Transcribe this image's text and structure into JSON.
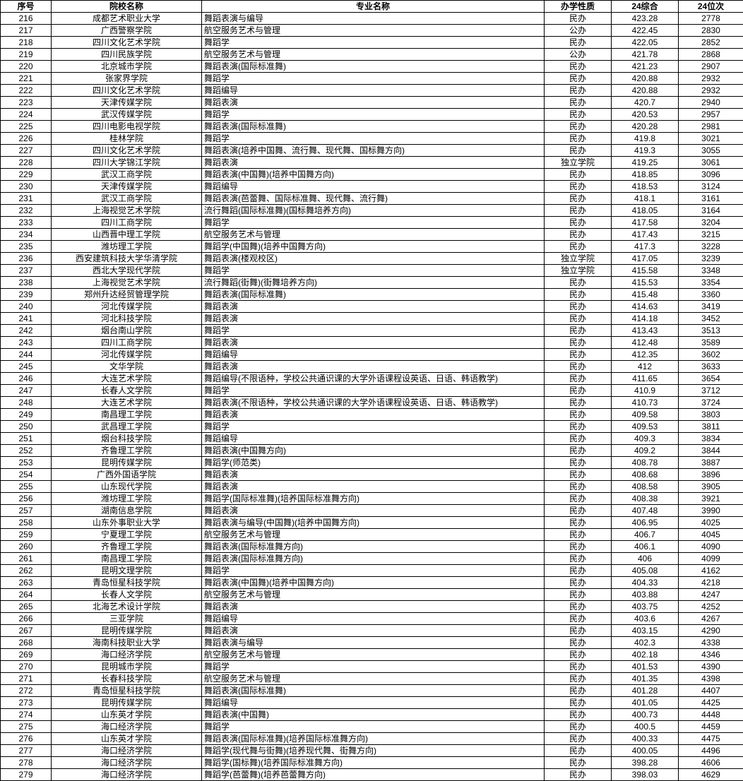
{
  "colors": {
    "border": "#000000",
    "text": "#000000",
    "background": "#ffffff"
  },
  "table": {
    "columns": [
      {
        "key": "seq",
        "label": "序号"
      },
      {
        "key": "school",
        "label": "院校名称"
      },
      {
        "key": "major",
        "label": "专业名称"
      },
      {
        "key": "type",
        "label": "办学性质"
      },
      {
        "key": "score",
        "label": "24综合"
      },
      {
        "key": "rank",
        "label": "24位次"
      }
    ],
    "rows": [
      [
        "216",
        "成都艺术职业大学",
        "舞蹈表演与编导",
        "民办",
        "423.28",
        "2778"
      ],
      [
        "217",
        "广西警察学院",
        "航空服务艺术与管理",
        "公办",
        "422.45",
        "2830"
      ],
      [
        "218",
        "四川文化艺术学院",
        "舞蹈学",
        "民办",
        "422.05",
        "2852"
      ],
      [
        "219",
        "四川民族学院",
        "航空服务艺术与管理",
        "公办",
        "421.78",
        "2868"
      ],
      [
        "220",
        "北京城市学院",
        "舞蹈表演(国际标准舞)",
        "民办",
        "421.23",
        "2907"
      ],
      [
        "221",
        "张家界学院",
        "舞蹈学",
        "民办",
        "420.88",
        "2932"
      ],
      [
        "222",
        "四川文化艺术学院",
        "舞蹈编导",
        "民办",
        "420.88",
        "2932"
      ],
      [
        "223",
        "天津传媒学院",
        "舞蹈表演",
        "民办",
        "420.7",
        "2940"
      ],
      [
        "224",
        "武汉传媒学院",
        "舞蹈学",
        "民办",
        "420.53",
        "2957"
      ],
      [
        "225",
        "四川电影电视学院",
        "舞蹈表演(国际标准舞)",
        "民办",
        "420.28",
        "2981"
      ],
      [
        "226",
        "桂林学院",
        "舞蹈学",
        "民办",
        "419.8",
        "3021"
      ],
      [
        "227",
        "四川文化艺术学院",
        "舞蹈表演(培养中国舞、流行舞、现代舞、国标舞方向)",
        "民办",
        "419.3",
        "3055"
      ],
      [
        "228",
        "四川大学锦江学院",
        "舞蹈表演",
        "独立学院",
        "419.25",
        "3061"
      ],
      [
        "229",
        "武汉工商学院",
        "舞蹈表演(中国舞)(培养中国舞方向)",
        "民办",
        "418.85",
        "3096"
      ],
      [
        "230",
        "天津传媒学院",
        "舞蹈编导",
        "民办",
        "418.53",
        "3124"
      ],
      [
        "231",
        "武汉工商学院",
        "舞蹈表演(芭蕾舞、国际标准舞、现代舞、流行舞)",
        "民办",
        "418.1",
        "3161"
      ],
      [
        "232",
        "上海视觉艺术学院",
        "流行舞蹈(国际标准舞)(国标舞培养方向)",
        "民办",
        "418.05",
        "3164"
      ],
      [
        "233",
        "四川工商学院",
        "舞蹈学",
        "民办",
        "417.58",
        "3204"
      ],
      [
        "234",
        "山西晋中理工学院",
        "航空服务艺术与管理",
        "民办",
        "417.43",
        "3215"
      ],
      [
        "235",
        "潍坊理工学院",
        "舞蹈学(中国舞)(培养中国舞方向)",
        "民办",
        "417.3",
        "3228"
      ],
      [
        "236",
        "西安建筑科技大学华清学院",
        "舞蹈表演(楼观校区)",
        "独立学院",
        "417.05",
        "3239"
      ],
      [
        "237",
        "西北大学现代学院",
        "舞蹈学",
        "独立学院",
        "415.58",
        "3348"
      ],
      [
        "238",
        "上海视觉艺术学院",
        "流行舞蹈(街舞)(街舞培养方向)",
        "民办",
        "415.53",
        "3354"
      ],
      [
        "239",
        "郑州升达经贸管理学院",
        "舞蹈表演(国际标准舞)",
        "民办",
        "415.48",
        "3360"
      ],
      [
        "240",
        "河北传媒学院",
        "舞蹈表演",
        "民办",
        "414.63",
        "3419"
      ],
      [
        "241",
        "河北科技学院",
        "舞蹈表演",
        "民办",
        "414.18",
        "3452"
      ],
      [
        "242",
        "烟台南山学院",
        "舞蹈学",
        "民办",
        "413.43",
        "3513"
      ],
      [
        "243",
        "四川工商学院",
        "舞蹈表演",
        "民办",
        "412.48",
        "3589"
      ],
      [
        "244",
        "河北传媒学院",
        "舞蹈编导",
        "民办",
        "412.35",
        "3602"
      ],
      [
        "245",
        "文华学院",
        "舞蹈表演",
        "民办",
        "412",
        "3633"
      ],
      [
        "246",
        "大连艺术学院",
        "舞蹈编导(不限语种，学校公共通识课的大学外语课程设英语、日语、韩语教学)",
        "民办",
        "411.65",
        "3654"
      ],
      [
        "247",
        "长春人文学院",
        "舞蹈学",
        "民办",
        "410.9",
        "3712"
      ],
      [
        "248",
        "大连艺术学院",
        "舞蹈表演(不限语种，学校公共通识课的大学外语课程设英语、日语、韩语教学)",
        "民办",
        "410.73",
        "3724"
      ],
      [
        "249",
        "南昌理工学院",
        "舞蹈表演",
        "民办",
        "409.58",
        "3803"
      ],
      [
        "250",
        "武昌理工学院",
        "舞蹈学",
        "民办",
        "409.53",
        "3811"
      ],
      [
        "251",
        "烟台科技学院",
        "舞蹈编导",
        "民办",
        "409.3",
        "3834"
      ],
      [
        "252",
        "齐鲁理工学院",
        "舞蹈表演(中国舞方向)",
        "民办",
        "409.2",
        "3844"
      ],
      [
        "253",
        "昆明传媒学院",
        "舞蹈学(师范类)",
        "民办",
        "408.78",
        "3887"
      ],
      [
        "254",
        "广西外国语学院",
        "舞蹈表演",
        "民办",
        "408.68",
        "3896"
      ],
      [
        "255",
        "山东现代学院",
        "舞蹈表演",
        "民办",
        "408.58",
        "3905"
      ],
      [
        "256",
        "潍坊理工学院",
        "舞蹈学(国际标准舞)(培养国际标准舞方向)",
        "民办",
        "408.38",
        "3921"
      ],
      [
        "257",
        "湖南信息学院",
        "舞蹈表演",
        "民办",
        "407.48",
        "3990"
      ],
      [
        "258",
        "山东外事职业大学",
        "舞蹈表演与编导(中国舞)(培养中国舞方向)",
        "民办",
        "406.95",
        "4025"
      ],
      [
        "259",
        "宁夏理工学院",
        "航空服务艺术与管理",
        "民办",
        "406.7",
        "4045"
      ],
      [
        "260",
        "齐鲁理工学院",
        "舞蹈表演(国际标准舞方向)",
        "民办",
        "406.1",
        "4090"
      ],
      [
        "261",
        "南昌理工学院",
        "舞蹈表演(国际标准舞方向)",
        "民办",
        "406",
        "4099"
      ],
      [
        "262",
        "昆明文理学院",
        "舞蹈学",
        "民办",
        "405.08",
        "4162"
      ],
      [
        "263",
        "青岛恒星科技学院",
        "舞蹈表演(中国舞)(培养中国舞方向)",
        "民办",
        "404.33",
        "4218"
      ],
      [
        "264",
        "长春人文学院",
        "航空服务艺术与管理",
        "民办",
        "403.88",
        "4247"
      ],
      [
        "265",
        "北海艺术设计学院",
        "舞蹈表演",
        "民办",
        "403.75",
        "4252"
      ],
      [
        "266",
        "三亚学院",
        "舞蹈编导",
        "民办",
        "403.6",
        "4267"
      ],
      [
        "267",
        "昆明传媒学院",
        "舞蹈表演",
        "民办",
        "403.15",
        "4290"
      ],
      [
        "268",
        "海南科技职业大学",
        "舞蹈表演与编导",
        "民办",
        "402.3",
        "4338"
      ],
      [
        "269",
        "海口经济学院",
        "航空服务艺术与管理",
        "民办",
        "402.18",
        "4346"
      ],
      [
        "270",
        "昆明城市学院",
        "舞蹈学",
        "民办",
        "401.53",
        "4390"
      ],
      [
        "271",
        "长春科技学院",
        "航空服务艺术与管理",
        "民办",
        "401.35",
        "4398"
      ],
      [
        "272",
        "青岛恒星科技学院",
        "舞蹈表演(国际标准舞)",
        "民办",
        "401.28",
        "4407"
      ],
      [
        "273",
        "昆明传媒学院",
        "舞蹈编导",
        "民办",
        "401.05",
        "4425"
      ],
      [
        "274",
        "山东英才学院",
        "舞蹈表演(中国舞)",
        "民办",
        "400.73",
        "4448"
      ],
      [
        "275",
        "海口经济学院",
        "舞蹈学",
        "民办",
        "400.5",
        "4459"
      ],
      [
        "276",
        "山东英才学院",
        "舞蹈表演(国际标准舞)(培养国际标准舞方向)",
        "民办",
        "400.33",
        "4475"
      ],
      [
        "277",
        "海口经济学院",
        "舞蹈学(现代舞与街舞)(培养现代舞、街舞方向)",
        "民办",
        "400.05",
        "4496"
      ],
      [
        "278",
        "海口经济学院",
        "舞蹈学(国标舞)(培养国际标准舞方向)",
        "民办",
        "398.28",
        "4606"
      ],
      [
        "279",
        "海口经济学院",
        "舞蹈学(芭蕾舞)(培养芭蕾舞方向)",
        "民办",
        "398.03",
        "4629"
      ]
    ]
  }
}
